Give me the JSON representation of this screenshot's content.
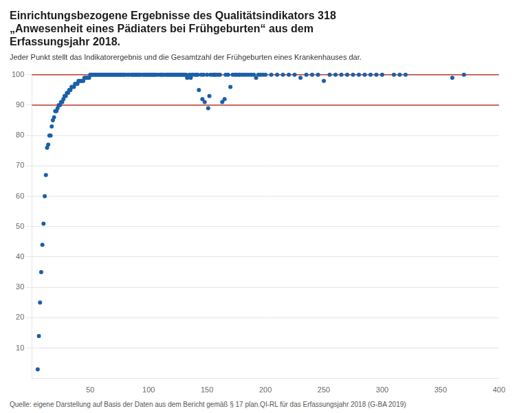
{
  "chart_data": {
    "type": "scatter",
    "title": [
      "Einrichtungsbezogene Ergebnisse des Qualitätsindikators 318",
      "„Anwesenheit eines Pädiaters bei Frühgeburten“ aus dem",
      "Erfassungsjahr 2018."
    ],
    "subtitle": "Jeder Punkt stellt das Indikatorergebnis und die Gesamtzahl der Frühgeburten eines Krankenhauses dar.",
    "footnote": "Quelle: eigene Darstellung auf Basis der Daten aus dem Bericht gemäß § 17 plan.QI-RL für das Erfassungsjahr 2018 (G-BA 2019)",
    "xlim": [
      0,
      400
    ],
    "ylim": [
      0,
      100
    ],
    "xticks": [
      50,
      100,
      150,
      200,
      250,
      300,
      350,
      400
    ],
    "yticks": [
      10,
      20,
      30,
      40,
      50,
      60,
      70,
      80,
      90,
      100
    ],
    "grid": "y",
    "ref_lines": [
      {
        "value": 100,
        "color": "#c0392b"
      },
      {
        "value": 90,
        "color": "#c0392b"
      }
    ],
    "color": "#1a5fa8",
    "x": [
      5,
      6,
      7,
      8,
      9,
      10,
      11,
      12,
      13,
      14,
      15,
      16,
      17,
      18,
      19,
      20,
      21,
      22,
      23,
      24,
      25,
      26,
      27,
      28,
      29,
      30,
      31,
      32,
      33,
      34,
      35,
      36,
      37,
      38,
      39,
      40,
      41,
      42,
      43,
      44,
      45,
      46,
      47,
      48,
      49,
      50,
      51,
      52,
      53,
      54,
      55,
      56,
      57,
      58,
      59,
      60,
      61,
      62,
      63,
      64,
      65,
      66,
      67,
      68,
      69,
      70,
      71,
      72,
      73,
      74,
      75,
      76,
      77,
      78,
      79,
      80,
      82,
      83,
      85,
      86,
      87,
      88,
      89,
      90,
      91,
      92,
      93,
      95,
      96,
      97,
      98,
      99,
      100,
      101,
      102,
      103,
      104,
      105,
      106,
      108,
      110,
      111,
      112,
      113,
      115,
      116,
      117,
      118,
      119,
      120,
      121,
      122,
      123,
      124,
      125,
      126,
      127,
      128,
      129,
      130,
      131,
      132,
      133,
      135,
      136,
      137,
      138,
      140,
      141,
      142,
      143,
      145,
      146,
      147,
      148,
      150,
      151,
      152,
      153,
      155,
      156,
      157,
      158,
      160,
      161,
      163,
      165,
      166,
      168,
      170,
      172,
      174,
      175,
      177,
      178,
      180,
      182,
      184,
      186,
      188,
      190,
      192,
      194,
      196,
      198,
      200,
      205,
      210,
      215,
      220,
      225,
      230,
      235,
      240,
      245,
      250,
      255,
      260,
      265,
      270,
      275,
      280,
      285,
      290,
      295,
      300,
      310,
      315,
      320,
      360,
      370
    ],
    "values": [
      3,
      14,
      25,
      35,
      44,
      51,
      60,
      67,
      76,
      77,
      80,
      80,
      83,
      85,
      86,
      88,
      88,
      89,
      90,
      90,
      91,
      91,
      92,
      93,
      93,
      94,
      94,
      95,
      95,
      96,
      96,
      96,
      97,
      97,
      97,
      98,
      98,
      98,
      98,
      98,
      99,
      99,
      99,
      99,
      99,
      100,
      100,
      100,
      100,
      100,
      100,
      100,
      100,
      100,
      100,
      100,
      100,
      100,
      100,
      100,
      100,
      100,
      100,
      100,
      100,
      100,
      100,
      100,
      100,
      100,
      100,
      100,
      100,
      100,
      100,
      100,
      100,
      100,
      100,
      100,
      100,
      100,
      100,
      100,
      100,
      100,
      100,
      100,
      100,
      100,
      100,
      100,
      100,
      100,
      100,
      100,
      100,
      100,
      100,
      100,
      100,
      100,
      100,
      100,
      100,
      100,
      100,
      100,
      100,
      100,
      100,
      100,
      100,
      100,
      100,
      100,
      100,
      100,
      100,
      100,
      100,
      100,
      99,
      100,
      99,
      100,
      100,
      100,
      100,
      100,
      95,
      100,
      92,
      100,
      91,
      100,
      89,
      93,
      100,
      100,
      100,
      100,
      100,
      100,
      100,
      91,
      92,
      100,
      100,
      96,
      100,
      100,
      100,
      100,
      100,
      100,
      100,
      100,
      100,
      100,
      100,
      99,
      100,
      100,
      100,
      100,
      100,
      100,
      100,
      100,
      100,
      99,
      100,
      100,
      100,
      98,
      100,
      100,
      100,
      100,
      100,
      100,
      100,
      100,
      100,
      100,
      100,
      100,
      100,
      99,
      100
    ]
  }
}
